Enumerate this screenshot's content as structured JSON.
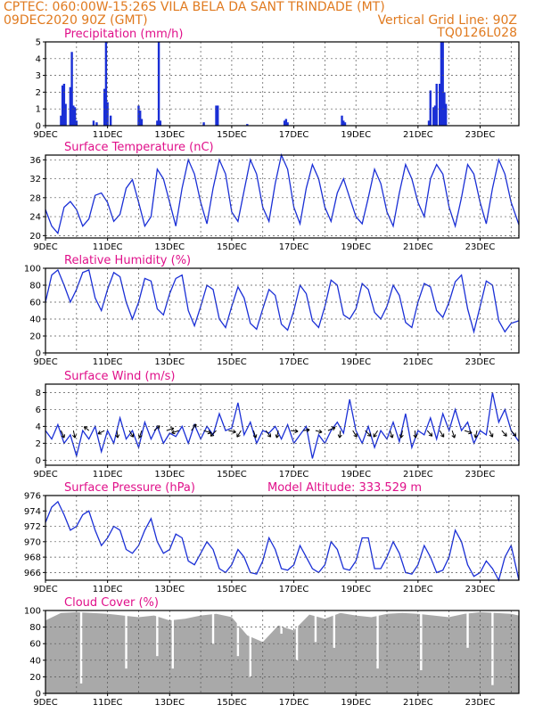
{
  "header": {
    "line1_left": "CPTEC:   060:00W-15:26S   VILA BELA DA SANT TRINDADE (MT)",
    "line2_left": "09DEC2020 90Z (GMT)",
    "line2_right": "Vertical Grid Line: 90Z",
    "line3_right": "TQ0126L028"
  },
  "x_labels": [
    "9DEC",
    "11DEC",
    "13DEC",
    "15DEC",
    "17DEC",
    "19DEC",
    "21DEC",
    "23DEC"
  ],
  "colors": {
    "series": "#1a2fd6",
    "cloud": "#a9a9a9",
    "title": "#e0108a",
    "header": "#e07a1f"
  },
  "chart_data": [
    {
      "type": "bar",
      "title": "Precipitation (mm/h)",
      "ylim": [
        0,
        5
      ],
      "yticks": [
        0,
        1,
        2,
        3,
        4,
        5
      ],
      "x_range": [
        9.0,
        24.25
      ],
      "x": [
        9.5,
        9.55,
        9.6,
        9.65,
        9.8,
        9.85,
        9.9,
        9.95,
        10.0,
        10.55,
        10.65,
        10.9,
        10.95,
        11.0,
        11.1,
        12.0,
        12.05,
        12.1,
        12.6,
        12.65,
        12.7,
        14.1,
        14.5,
        14.55,
        15.5,
        16.7,
        16.75,
        16.8,
        18.55,
        18.6,
        18.65,
        21.35,
        21.4,
        21.5,
        21.55,
        21.6,
        21.7,
        21.75,
        21.8,
        21.85,
        21.9
      ],
      "values": [
        0.6,
        2.4,
        2.5,
        1.3,
        2.3,
        4.4,
        1.2,
        1.1,
        0.3,
        0.3,
        0.2,
        2.2,
        5.0,
        1.4,
        0.6,
        1.2,
        0.9,
        0.4,
        0.3,
        5.0,
        0.3,
        0.2,
        1.2,
        1.2,
        0.1,
        0.3,
        0.4,
        0.2,
        0.6,
        0.3,
        0.2,
        0.3,
        2.1,
        1.1,
        1.2,
        2.5,
        2.5,
        5.0,
        5.0,
        2.0,
        1.3
      ]
    },
    {
      "type": "line",
      "title": "Surface Temperature (nC)",
      "ylim": [
        19.5,
        37
      ],
      "yticks": [
        20,
        24,
        28,
        32,
        36
      ],
      "x_range": [
        9.0,
        24.25
      ],
      "x": [
        9.0,
        9.2,
        9.4,
        9.6,
        9.8,
        10.0,
        10.2,
        10.4,
        10.6,
        10.8,
        11.0,
        11.2,
        11.4,
        11.6,
        11.8,
        12.0,
        12.2,
        12.4,
        12.6,
        12.8,
        13.0,
        13.2,
        13.4,
        13.6,
        13.8,
        14.0,
        14.2,
        14.4,
        14.6,
        14.8,
        15.0,
        15.2,
        15.4,
        15.6,
        15.8,
        16.0,
        16.2,
        16.4,
        16.6,
        16.8,
        17.0,
        17.2,
        17.4,
        17.6,
        17.8,
        18.0,
        18.2,
        18.4,
        18.6,
        18.8,
        19.0,
        19.2,
        19.4,
        19.6,
        19.8,
        20.0,
        20.2,
        20.4,
        20.6,
        20.8,
        21.0,
        21.2,
        21.4,
        21.6,
        21.8,
        22.0,
        22.2,
        22.4,
        22.6,
        22.8,
        23.0,
        23.2,
        23.4,
        23.6,
        23.8,
        24.0,
        24.25
      ],
      "values": [
        25.5,
        22,
        20.5,
        26,
        27.2,
        25.5,
        22,
        23.5,
        28.5,
        29,
        27,
        23,
        24.5,
        30,
        31.8,
        27,
        22,
        24,
        34,
        32,
        27,
        22,
        30,
        36,
        33,
        27,
        22.5,
        30,
        36,
        33,
        25,
        23,
        29.5,
        36,
        33,
        26,
        23,
        31,
        37,
        34,
        26,
        22.5,
        30,
        35,
        32,
        26,
        23,
        29,
        32,
        28,
        24,
        22.5,
        28,
        34,
        31,
        25,
        22,
        29,
        35,
        32,
        27,
        24,
        32,
        35,
        33,
        26,
        22,
        28,
        35,
        33,
        27,
        22.5,
        30,
        36,
        33,
        27,
        22.3
      ]
    },
    {
      "type": "line",
      "title": "Relative Humidity (%)",
      "ylim": [
        0,
        100
      ],
      "yticks": [
        0,
        20,
        40,
        60,
        80,
        100
      ],
      "x_range": [
        9.0,
        24.25
      ],
      "x": [
        9.0,
        9.2,
        9.4,
        9.6,
        9.8,
        10.0,
        10.2,
        10.4,
        10.6,
        10.8,
        11.0,
        11.2,
        11.4,
        11.6,
        11.8,
        12.0,
        12.2,
        12.4,
        12.6,
        12.8,
        13.0,
        13.2,
        13.4,
        13.6,
        13.8,
        14.0,
        14.2,
        14.4,
        14.6,
        14.8,
        15.0,
        15.2,
        15.4,
        15.6,
        15.8,
        16.0,
        16.2,
        16.4,
        16.6,
        16.8,
        17.0,
        17.2,
        17.4,
        17.6,
        17.8,
        18.0,
        18.2,
        18.4,
        18.6,
        18.8,
        19.0,
        19.2,
        19.4,
        19.6,
        19.8,
        20.0,
        20.2,
        20.4,
        20.6,
        20.8,
        21.0,
        21.2,
        21.4,
        21.6,
        21.8,
        22.0,
        22.2,
        22.4,
        22.6,
        22.8,
        23.0,
        23.2,
        23.4,
        23.6,
        23.8,
        24.0,
        24.25
      ],
      "values": [
        60,
        92,
        98,
        80,
        60,
        75,
        95,
        98,
        65,
        50,
        75,
        95,
        90,
        60,
        40,
        60,
        88,
        85,
        52,
        45,
        70,
        88,
        92,
        50,
        32,
        55,
        80,
        75,
        40,
        30,
        55,
        78,
        65,
        35,
        28,
        52,
        75,
        68,
        34,
        27,
        50,
        80,
        70,
        38,
        30,
        55,
        86,
        80,
        45,
        40,
        52,
        82,
        75,
        48,
        40,
        55,
        80,
        68,
        36,
        30,
        60,
        82,
        78,
        50,
        42,
        60,
        84,
        92,
        52,
        25,
        55,
        85,
        80,
        38,
        25,
        35,
        38
      ]
    },
    {
      "type": "line",
      "title": "Surface Wind (m/s)",
      "ylim": [
        -0.6,
        9
      ],
      "yticks": [
        0,
        2,
        4,
        6,
        8
      ],
      "x_range": [
        9.0,
        24.25
      ],
      "x": [
        9.0,
        9.2,
        9.4,
        9.6,
        9.8,
        10.0,
        10.2,
        10.4,
        10.6,
        10.8,
        11.0,
        11.2,
        11.4,
        11.6,
        11.8,
        12.0,
        12.2,
        12.4,
        12.6,
        12.8,
        13.0,
        13.2,
        13.4,
        13.6,
        13.8,
        14.0,
        14.2,
        14.4,
        14.6,
        14.8,
        15.0,
        15.2,
        15.4,
        15.6,
        15.8,
        16.0,
        16.2,
        16.4,
        16.6,
        16.8,
        17.0,
        17.2,
        17.4,
        17.6,
        17.8,
        18.0,
        18.2,
        18.4,
        18.6,
        18.8,
        19.0,
        19.2,
        19.4,
        19.6,
        19.8,
        20.0,
        20.2,
        20.4,
        20.6,
        20.8,
        21.0,
        21.2,
        21.4,
        21.6,
        21.8,
        22.0,
        22.2,
        22.4,
        22.6,
        22.8,
        23.0,
        23.2,
        23.4,
        23.6,
        23.8,
        24.0,
        24.25
      ],
      "values": [
        3.5,
        2.5,
        4.2,
        2.0,
        3.0,
        0.5,
        3.5,
        2.5,
        4.0,
        1.0,
        3.5,
        2.0,
        5.0,
        2.5,
        3.5,
        1.5,
        4.5,
        2.5,
        4.0,
        2.0,
        3.2,
        2.8,
        4.0,
        2.0,
        4.2,
        2.5,
        4.0,
        3.0,
        5.5,
        3.5,
        3.8,
        6.8,
        3.0,
        4.5,
        2.0,
        3.5,
        3.2,
        4.0,
        2.5,
        4.2,
        2.0,
        3.0,
        4.0,
        0.2,
        3.0,
        2.0,
        3.5,
        4.5,
        3.2,
        7.2,
        3.5,
        2.0,
        4.0,
        1.5,
        3.5,
        2.5,
        4.5,
        2.2,
        5.5,
        1.5,
        3.5,
        3.0,
        5.0,
        2.5,
        5.5,
        3.5,
        6.0,
        3.5,
        4.5,
        2.0,
        3.5,
        3.0,
        8.0,
        4.5,
        6.0,
        3.5,
        2.2
      ],
      "vectors_x": [
        9.5,
        9.9,
        10.4,
        10.9,
        11.3,
        11.7,
        12.1,
        12.5,
        12.9,
        13.3,
        13.7,
        14.1,
        14.5,
        14.9,
        15.3,
        15.7,
        16.1,
        16.5,
        16.9,
        17.3,
        17.7,
        18.1,
        18.5,
        18.9,
        19.3,
        19.7,
        20.1,
        20.5,
        20.9,
        21.3,
        21.7,
        22.1,
        22.5,
        22.9,
        23.3,
        23.7,
        24.0
      ],
      "vectors_u": [
        0.4,
        0.2,
        -0.6,
        -0.8,
        0.1,
        0.5,
        -0.3,
        0.7,
        0.9,
        -0.9,
        0.6,
        0.9,
        -0.7,
        0.9,
        -0.5,
        0.3,
        0.6,
        -0.2,
        0.9,
        0.8,
        0.8,
        0.9,
        -0.1,
        0.5,
        0.7,
        -0.5,
        0.3,
        -0.2,
        0.1,
        0.6,
        0.5,
        0.3,
        0.9,
        -0.2,
        0.4,
        0.6,
        0.6
      ],
      "vectors_v": [
        -0.9,
        -0.9,
        0.5,
        -0.4,
        -0.9,
        -0.8,
        -0.9,
        0.6,
        0.3,
        -0.3,
        0.8,
        -0.3,
        -0.7,
        -0.2,
        -0.8,
        -0.9,
        -0.8,
        -0.9,
        -0.1,
        0.1,
        -0.2,
        0.4,
        -0.9,
        -0.8,
        -0.7,
        -0.8,
        -0.9,
        -0.9,
        -0.9,
        -0.7,
        -0.8,
        -0.9,
        -0.3,
        -0.9,
        -0.8,
        -0.7,
        -0.7
      ]
    },
    {
      "type": "line",
      "title": "Surface Pressure (hPa)",
      "annotation": "Model Altitude: 333.529 m",
      "ylim": [
        965,
        976
      ],
      "yticks": [
        966,
        968,
        970,
        972,
        974,
        976
      ],
      "x_range": [
        9.0,
        24.25
      ],
      "x": [
        9.0,
        9.2,
        9.4,
        9.6,
        9.8,
        10.0,
        10.2,
        10.4,
        10.6,
        10.8,
        11.0,
        11.2,
        11.4,
        11.6,
        11.8,
        12.0,
        12.2,
        12.4,
        12.6,
        12.8,
        13.0,
        13.2,
        13.4,
        13.6,
        13.8,
        14.0,
        14.2,
        14.4,
        14.6,
        14.8,
        15.0,
        15.2,
        15.4,
        15.6,
        15.8,
        16.0,
        16.2,
        16.4,
        16.6,
        16.8,
        17.0,
        17.2,
        17.4,
        17.6,
        17.8,
        18.0,
        18.2,
        18.4,
        18.6,
        18.8,
        19.0,
        19.2,
        19.4,
        19.6,
        19.8,
        20.0,
        20.2,
        20.4,
        20.6,
        20.8,
        21.0,
        21.2,
        21.4,
        21.6,
        21.8,
        22.0,
        22.2,
        22.4,
        22.6,
        22.8,
        23.0,
        23.2,
        23.4,
        23.6,
        23.8,
        24.0,
        24.25
      ],
      "values": [
        972.5,
        974.5,
        975.2,
        973.5,
        971.5,
        972.0,
        973.5,
        974.0,
        971.5,
        969.5,
        970.5,
        972.0,
        971.5,
        969.0,
        968.5,
        969.5,
        971.5,
        973.0,
        970.0,
        968.5,
        969.0,
        971.0,
        970.5,
        967.5,
        967.0,
        968.5,
        970.0,
        969.0,
        966.5,
        966.0,
        967.0,
        969.0,
        968.0,
        966.0,
        965.8,
        967.5,
        970.5,
        969.0,
        966.5,
        966.3,
        967.0,
        969.5,
        968.0,
        966.5,
        966.0,
        967.0,
        970.0,
        969.0,
        966.5,
        966.3,
        967.5,
        970.5,
        970.5,
        966.5,
        966.5,
        968.0,
        970.0,
        968.5,
        966.0,
        965.8,
        967.0,
        969.5,
        968.0,
        966.0,
        966.3,
        968.0,
        971.5,
        970.0,
        967.0,
        965.5,
        966.0,
        967.5,
        966.5,
        965.0,
        968.0,
        969.5,
        965.0
      ]
    },
    {
      "type": "area",
      "title": "Cloud Cover (%)",
      "ylim": [
        0,
        100
      ],
      "yticks": [
        0,
        20,
        40,
        60,
        80,
        100
      ],
      "x_range": [
        9.0,
        24.25
      ],
      "x": [
        9.0,
        9.5,
        10.0,
        10.5,
        11.0,
        11.5,
        12.0,
        12.5,
        13.0,
        13.5,
        14.0,
        14.5,
        15.0,
        15.5,
        16.0,
        16.5,
        17.0,
        17.5,
        18.0,
        18.5,
        19.0,
        19.5,
        20.0,
        20.5,
        21.0,
        21.5,
        22.0,
        22.5,
        23.0,
        23.5,
        24.0,
        24.25
      ],
      "values": [
        88,
        97,
        98,
        97,
        96,
        94,
        92,
        94,
        88,
        90,
        94,
        96,
        92,
        70,
        62,
        82,
        76,
        95,
        90,
        97,
        94,
        92,
        96,
        97,
        96,
        94,
        92,
        96,
        98,
        97,
        96,
        94
      ],
      "dips_x": [
        10.15,
        11.6,
        12.6,
        13.1,
        14.4,
        15.2,
        15.6,
        16.6,
        17.1,
        17.7,
        18.3,
        19.7,
        21.1,
        22.6,
        23.4
      ],
      "dips_value": [
        12,
        30,
        45,
        30,
        60,
        45,
        20,
        72,
        40,
        62,
        55,
        30,
        28,
        55,
        10
      ]
    }
  ]
}
